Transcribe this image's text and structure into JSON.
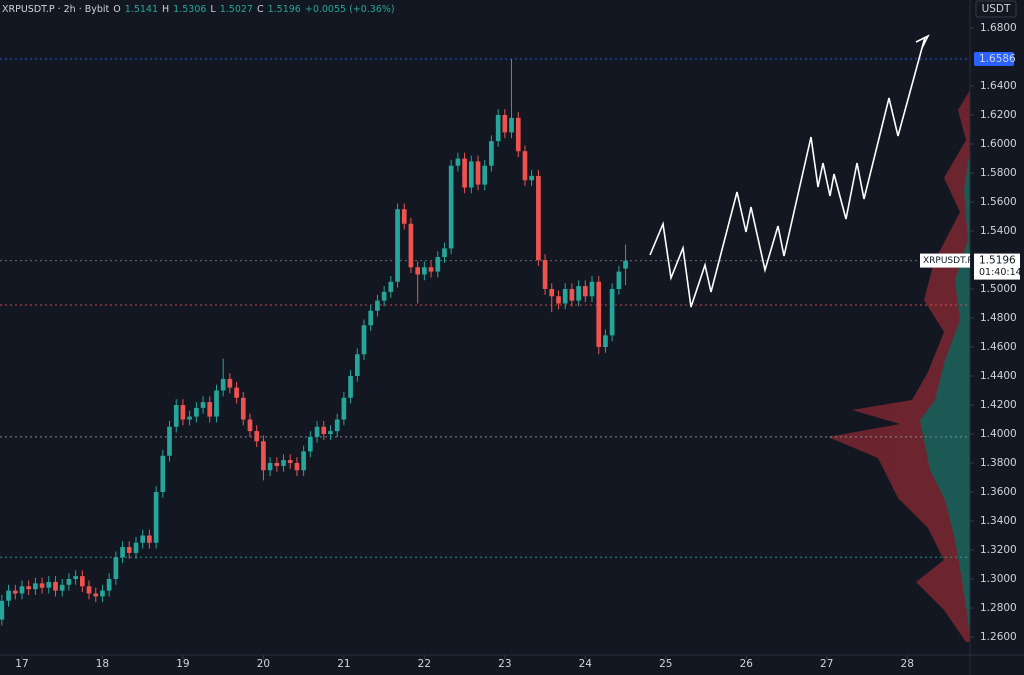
{
  "chart_data": {
    "type": "candlestick",
    "header": {
      "title": "XRPUSDT.P · 2h · Bybit",
      "items": [
        {
          "label": "O",
          "value": 1.5141
        },
        {
          "label": "H",
          "value": 1.5306
        },
        {
          "label": "L",
          "value": 1.5027
        },
        {
          "label": "C",
          "value": 1.5196
        }
      ],
      "change": "+0.0055 (+0.36%)"
    },
    "currency": "USDT",
    "up_color": "#26a69a",
    "down_color": "#ef5350",
    "xlim": [
      16.727,
      28.78
    ],
    "xticks": [
      17,
      18,
      19,
      20,
      21,
      22,
      23,
      24,
      25,
      26,
      27,
      28
    ],
    "ylim": [
      1.2476,
      1.6993
    ],
    "yticks": [
      {
        "value": 1.26,
        "label": "1.2600"
      },
      {
        "value": 1.28,
        "label": "1.2800"
      },
      {
        "value": 1.3,
        "label": "1.3000"
      },
      {
        "value": 1.32,
        "label": "1.3200"
      },
      {
        "value": 1.34,
        "label": "1.3400"
      },
      {
        "value": 1.36,
        "label": "1.3600"
      },
      {
        "value": 1.38,
        "label": "1.3800"
      },
      {
        "value": 1.4,
        "label": "1.4000"
      },
      {
        "value": 1.42,
        "label": "1.4200"
      },
      {
        "value": 1.44,
        "label": "1.4400"
      },
      {
        "value": 1.46,
        "label": "1.4600"
      },
      {
        "value": 1.48,
        "label": "1.4800"
      },
      {
        "value": 1.5,
        "label": "1.5000"
      },
      {
        "value": 1.54,
        "label": "1.5400"
      },
      {
        "value": 1.56,
        "label": "1.5600"
      },
      {
        "value": 1.58,
        "label": "1.5800"
      },
      {
        "value": 1.6,
        "label": "1.6000"
      },
      {
        "value": 1.62,
        "label": "1.6200"
      },
      {
        "value": 1.64,
        "label": "1.6400"
      },
      {
        "value": 1.68,
        "label": "1.6800"
      }
    ],
    "price_lines": [
      {
        "value": 1.6586,
        "color": "#2962ff"
      },
      {
        "value": 1.5196,
        "color": "#787b86"
      },
      {
        "value": 1.489,
        "color": "#ef5350"
      },
      {
        "value": 1.398,
        "color": "#9598a1"
      },
      {
        "value": 1.315,
        "color": "#26a69a"
      }
    ],
    "symbol": "XRPUSDT.P",
    "countdown": "01:40:14",
    "x": [
      16.75,
      16.833,
      16.917,
      17,
      17.083,
      17.167,
      17.25,
      17.333,
      17.417,
      17.5,
      17.583,
      17.667,
      17.75,
      17.833,
      17.917,
      18,
      18.083,
      18.167,
      18.25,
      18.333,
      18.417,
      18.5,
      18.583,
      18.667,
      18.75,
      18.833,
      18.917,
      19,
      19.083,
      19.167,
      19.25,
      19.333,
      19.417,
      19.5,
      19.583,
      19.667,
      19.75,
      19.833,
      19.917,
      20,
      20.083,
      20.167,
      20.25,
      20.333,
      20.417,
      20.5,
      20.583,
      20.667,
      20.75,
      20.833,
      20.917,
      21,
      21.083,
      21.167,
      21.25,
      21.333,
      21.417,
      21.5,
      21.583,
      21.667,
      21.75,
      21.833,
      21.917,
      22,
      22.083,
      22.167,
      22.25,
      22.333,
      22.417,
      22.5,
      22.583,
      22.667,
      22.75,
      22.833,
      22.917,
      23,
      23.083,
      23.167,
      23.25,
      23.333,
      23.417,
      23.5,
      23.583,
      23.667,
      23.75,
      23.833,
      23.917,
      24,
      24.083,
      24.167,
      24.25,
      24.333,
      24.417,
      24.5
    ],
    "candles": [
      [
        1.272,
        1.289,
        1.268,
        1.285
      ],
      [
        1.285,
        1.296,
        1.281,
        1.292
      ],
      [
        1.292,
        1.296,
        1.286,
        1.29
      ],
      [
        1.29,
        1.299,
        1.286,
        1.295
      ],
      [
        1.295,
        1.299,
        1.289,
        1.293
      ],
      [
        1.293,
        1.301,
        1.289,
        1.297
      ],
      [
        1.297,
        1.301,
        1.29,
        1.294
      ],
      [
        1.294,
        1.302,
        1.29,
        1.298
      ],
      [
        1.298,
        1.302,
        1.288,
        1.292
      ],
      [
        1.292,
        1.3,
        1.288,
        1.296
      ],
      [
        1.296,
        1.304,
        1.292,
        1.3
      ],
      [
        1.3,
        1.306,
        1.296,
        1.302
      ],
      [
        1.302,
        1.306,
        1.291,
        1.295
      ],
      [
        1.295,
        1.299,
        1.286,
        1.29
      ],
      [
        1.29,
        1.294,
        1.284,
        1.288
      ],
      [
        1.288,
        1.296,
        1.284,
        1.292
      ],
      [
        1.292,
        1.304,
        1.288,
        1.3
      ],
      [
        1.3,
        1.319,
        1.296,
        1.315
      ],
      [
        1.315,
        1.326,
        1.311,
        1.322
      ],
      [
        1.322,
        1.326,
        1.314,
        1.318
      ],
      [
        1.318,
        1.329,
        1.314,
        1.325
      ],
      [
        1.325,
        1.334,
        1.321,
        1.33
      ],
      [
        1.33,
        1.334,
        1.321,
        1.325
      ],
      [
        1.325,
        1.364,
        1.321,
        1.36
      ],
      [
        1.36,
        1.389,
        1.356,
        1.385
      ],
      [
        1.385,
        1.409,
        1.381,
        1.405
      ],
      [
        1.405,
        1.424,
        1.401,
        1.42
      ],
      [
        1.42,
        1.424,
        1.406,
        1.41
      ],
      [
        1.41,
        1.416,
        1.406,
        1.412
      ],
      [
        1.412,
        1.422,
        1.408,
        1.418
      ],
      [
        1.418,
        1.426,
        1.414,
        1.422
      ],
      [
        1.422,
        1.426,
        1.408,
        1.412
      ],
      [
        1.412,
        1.434,
        1.408,
        1.43
      ],
      [
        1.43,
        1.452,
        1.426,
        1.438
      ],
      [
        1.438,
        1.442,
        1.428,
        1.432
      ],
      [
        1.432,
        1.436,
        1.421,
        1.425
      ],
      [
        1.425,
        1.429,
        1.406,
        1.41
      ],
      [
        1.41,
        1.414,
        1.398,
        1.402
      ],
      [
        1.402,
        1.406,
        1.391,
        1.395
      ],
      [
        1.395,
        1.399,
        1.368,
        1.375
      ],
      [
        1.375,
        1.384,
        1.371,
        1.38
      ],
      [
        1.38,
        1.384,
        1.374,
        1.378
      ],
      [
        1.378,
        1.386,
        1.374,
        1.382
      ],
      [
        1.382,
        1.386,
        1.376,
        1.38
      ],
      [
        1.38,
        1.384,
        1.371,
        1.375
      ],
      [
        1.375,
        1.392,
        1.371,
        1.388
      ],
      [
        1.388,
        1.402,
        1.384,
        1.398
      ],
      [
        1.398,
        1.409,
        1.394,
        1.405
      ],
      [
        1.405,
        1.409,
        1.396,
        1.4
      ],
      [
        1.4,
        1.406,
        1.396,
        1.402
      ],
      [
        1.402,
        1.414,
        1.398,
        1.41
      ],
      [
        1.41,
        1.429,
        1.406,
        1.425
      ],
      [
        1.425,
        1.444,
        1.421,
        1.44
      ],
      [
        1.44,
        1.459,
        1.436,
        1.455
      ],
      [
        1.455,
        1.479,
        1.451,
        1.475
      ],
      [
        1.475,
        1.489,
        1.471,
        1.485
      ],
      [
        1.485,
        1.496,
        1.481,
        1.492
      ],
      [
        1.492,
        1.502,
        1.488,
        1.498
      ],
      [
        1.498,
        1.509,
        1.494,
        1.505
      ],
      [
        1.505,
        1.559,
        1.501,
        1.555
      ],
      [
        1.555,
        1.559,
        1.541,
        1.545
      ],
      [
        1.545,
        1.549,
        1.511,
        1.515
      ],
      [
        1.515,
        1.519,
        1.49,
        1.51
      ],
      [
        1.51,
        1.519,
        1.506,
        1.515
      ],
      [
        1.515,
        1.519,
        1.508,
        1.512
      ],
      [
        1.512,
        1.526,
        1.508,
        1.522
      ],
      [
        1.522,
        1.532,
        1.518,
        1.528
      ],
      [
        1.528,
        1.589,
        1.524,
        1.585
      ],
      [
        1.585,
        1.594,
        1.581,
        1.59
      ],
      [
        1.59,
        1.594,
        1.566,
        1.57
      ],
      [
        1.57,
        1.592,
        1.566,
        1.588
      ],
      [
        1.588,
        1.592,
        1.568,
        1.572
      ],
      [
        1.572,
        1.589,
        1.568,
        1.585
      ],
      [
        1.585,
        1.606,
        1.581,
        1.602
      ],
      [
        1.602,
        1.624,
        1.598,
        1.62
      ],
      [
        1.62,
        1.624,
        1.604,
        1.608
      ],
      [
        1.608,
        1.6586,
        1.604,
        1.618
      ],
      [
        1.618,
        1.622,
        1.591,
        1.595
      ],
      [
        1.595,
        1.599,
        1.571,
        1.575
      ],
      [
        1.575,
        1.582,
        1.571,
        1.578
      ],
      [
        1.578,
        1.582,
        1.516,
        1.52
      ],
      [
        1.52,
        1.524,
        1.496,
        1.5
      ],
      [
        1.5,
        1.504,
        1.484,
        1.495
      ],
      [
        1.495,
        1.499,
        1.486,
        1.49
      ],
      [
        1.49,
        1.504,
        1.486,
        1.5
      ],
      [
        1.5,
        1.504,
        1.488,
        1.492
      ],
      [
        1.492,
        1.506,
        1.488,
        1.502
      ],
      [
        1.502,
        1.506,
        1.491,
        1.495
      ],
      [
        1.495,
        1.509,
        1.491,
        1.505
      ],
      [
        1.505,
        1.509,
        1.455,
        1.46
      ],
      [
        1.46,
        1.472,
        1.456,
        1.468
      ],
      [
        1.468,
        1.504,
        1.464,
        1.5
      ],
      [
        1.5,
        1.516,
        1.496,
        1.512
      ],
      [
        1.5141,
        1.5306,
        1.5027,
        1.5196
      ]
    ]
  }
}
